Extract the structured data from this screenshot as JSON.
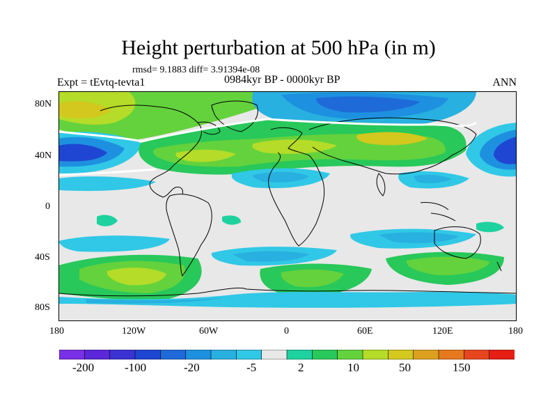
{
  "header": {
    "title": "Height perturbation at 500 hPa (in m)",
    "stats": "rmsd= 9.1883 diff= 3.91394e-08",
    "experiment": "Expt = tEvtq-tevta1",
    "period": "0984kyr BP - 0000kyr BP",
    "season": "ANN"
  },
  "axes": {
    "lat_labels": [
      "80N",
      "40N",
      "0",
      "40S",
      "80S"
    ],
    "lon_labels": [
      "180",
      "120W",
      "60W",
      "0",
      "60E",
      "120E",
      "180"
    ]
  },
  "colorbar": {
    "colors": [
      "#7a30e6",
      "#5a28d8",
      "#3a32d2",
      "#1e46d2",
      "#1e6ad8",
      "#1e90e0",
      "#28b0e0",
      "#30c8e6",
      "#e8e8e8",
      "#1ed2a0",
      "#28c85a",
      "#64d23c",
      "#b4dc28",
      "#d2c81e",
      "#dca01e",
      "#e6781e",
      "#e6461e",
      "#e61e14"
    ],
    "labels": [
      "-200",
      "-100",
      "-20",
      "-5",
      "2",
      "10",
      "50",
      "150"
    ]
  }
}
